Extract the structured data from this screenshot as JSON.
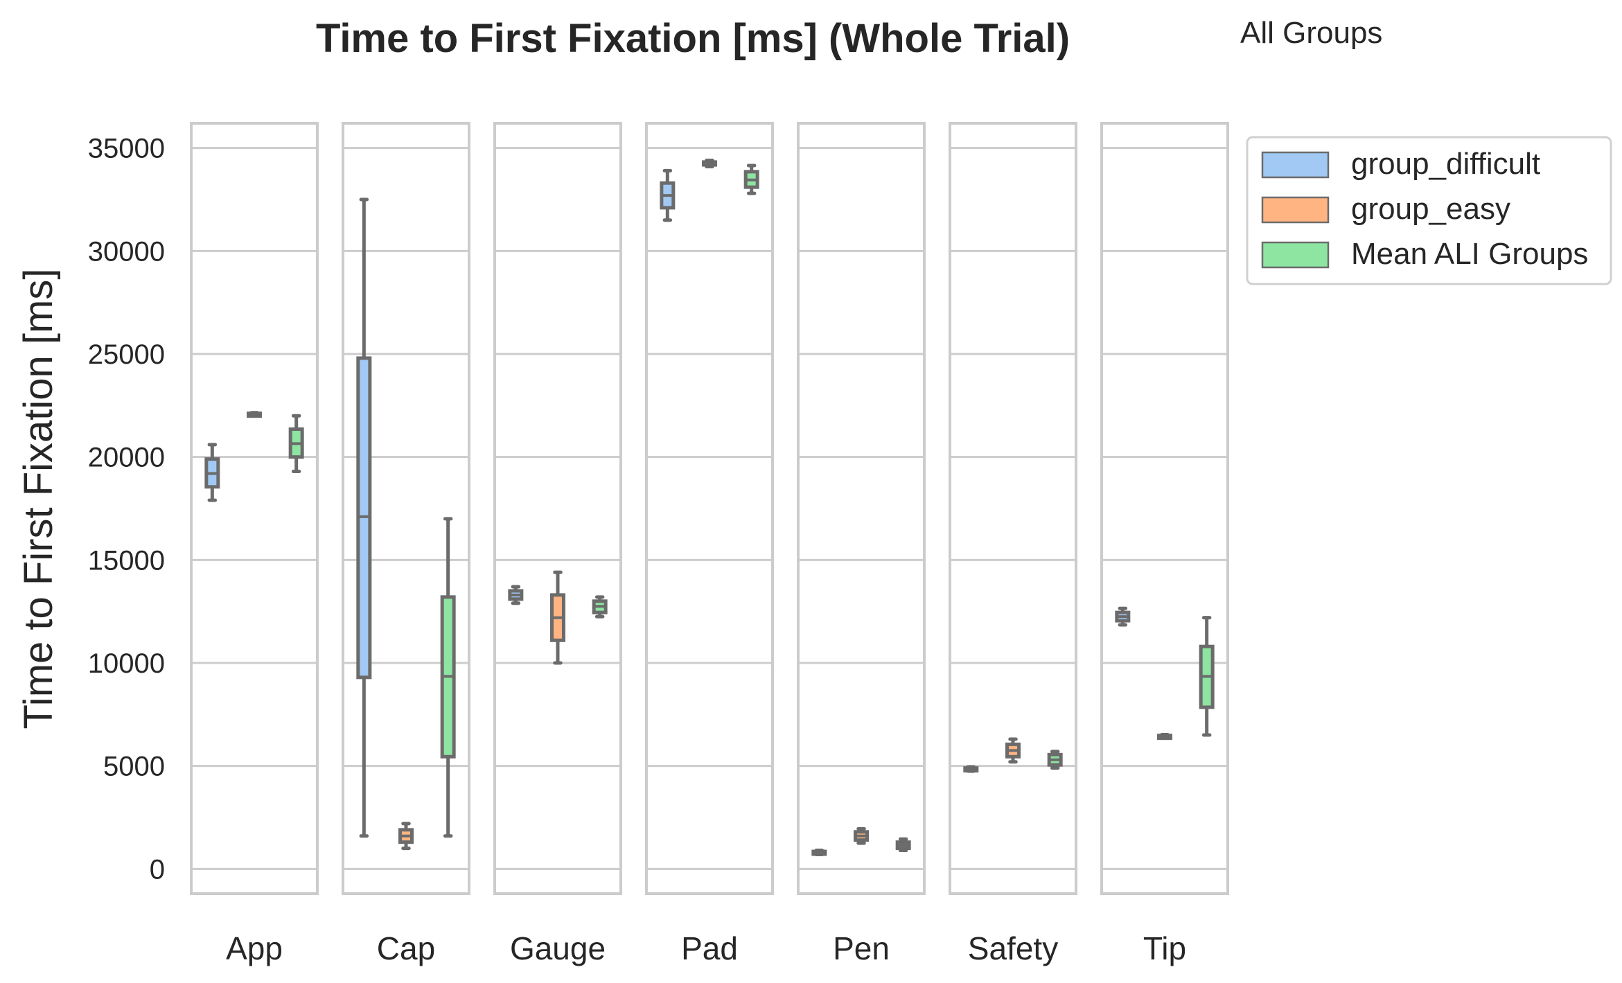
{
  "chart_data": {
    "type": "box",
    "title": "Time to First Fixation [ms] (Whole Trial)",
    "subtitle": "All Groups",
    "ylabel": "Time to First Fixation [ms]",
    "xlabel": "",
    "ylim": [
      -1200,
      36200
    ],
    "yticks": [
      0,
      5000,
      10000,
      15000,
      20000,
      25000,
      30000,
      35000
    ],
    "grid": true,
    "legend_position": "top-right outside",
    "categories": [
      "App",
      "Cap",
      "Gauge",
      "Pad",
      "Pen",
      "Safety",
      "Tip"
    ],
    "series": [
      {
        "name": "group_difficult",
        "color": "#a1c9f4",
        "boxes": [
          {
            "min": 17900,
            "q1": 18550,
            "median": 19200,
            "q3": 19900,
            "max": 20600
          },
          {
            "min": 1600,
            "q1": 9300,
            "median": 17100,
            "q3": 24800,
            "max": 32500
          },
          {
            "min": 12900,
            "q1": 13100,
            "median": 13300,
            "q3": 13500,
            "max": 13700
          },
          {
            "min": 31500,
            "q1": 32100,
            "median": 32700,
            "q3": 33300,
            "max": 33900
          },
          {
            "min": 700,
            "q1": 750,
            "median": 800,
            "q3": 850,
            "max": 900
          },
          {
            "min": 4750,
            "q1": 4800,
            "median": 4850,
            "q3": 4900,
            "max": 4950
          },
          {
            "min": 11850,
            "q1": 12050,
            "median": 12250,
            "q3": 12450,
            "max": 12650
          }
        ]
      },
      {
        "name": "group_easy",
        "color": "#ffb482",
        "boxes": [
          {
            "min": 22050,
            "q1": 22080,
            "median": 22100,
            "q3": 22120,
            "max": 22150
          },
          {
            "min": 1000,
            "q1": 1300,
            "median": 1600,
            "q3": 1900,
            "max": 2200
          },
          {
            "min": 10000,
            "q1": 11100,
            "median": 12200,
            "q3": 13300,
            "max": 14400
          },
          {
            "min": 34100,
            "q1": 34180,
            "median": 34250,
            "q3": 34320,
            "max": 34400
          },
          {
            "min": 1250,
            "q1": 1400,
            "median": 1600,
            "q3": 1800,
            "max": 1950
          },
          {
            "min": 5200,
            "q1": 5450,
            "median": 5750,
            "q3": 6050,
            "max": 6300
          },
          {
            "min": 6380,
            "q1": 6420,
            "median": 6450,
            "q3": 6480,
            "max": 6520
          }
        ]
      },
      {
        "name": "Mean ALI Groups",
        "color": "#8de5a1",
        "boxes": [
          {
            "min": 19300,
            "q1": 20000,
            "median": 20650,
            "q3": 21350,
            "max": 22000
          },
          {
            "min": 1600,
            "q1": 5450,
            "median": 9350,
            "q3": 13200,
            "max": 17000
          },
          {
            "min": 12250,
            "q1": 12450,
            "median": 12750,
            "q3": 13000,
            "max": 13200
          },
          {
            "min": 32800,
            "q1": 33100,
            "median": 33450,
            "q3": 33850,
            "max": 34150
          },
          {
            "min": 900,
            "q1": 1000,
            "median": 1150,
            "q3": 1300,
            "max": 1450
          },
          {
            "min": 4900,
            "q1": 5050,
            "median": 5300,
            "q3": 5550,
            "max": 5700
          },
          {
            "min": 6500,
            "q1": 7850,
            "median": 9350,
            "q3": 10800,
            "max": 12200
          }
        ]
      }
    ]
  }
}
